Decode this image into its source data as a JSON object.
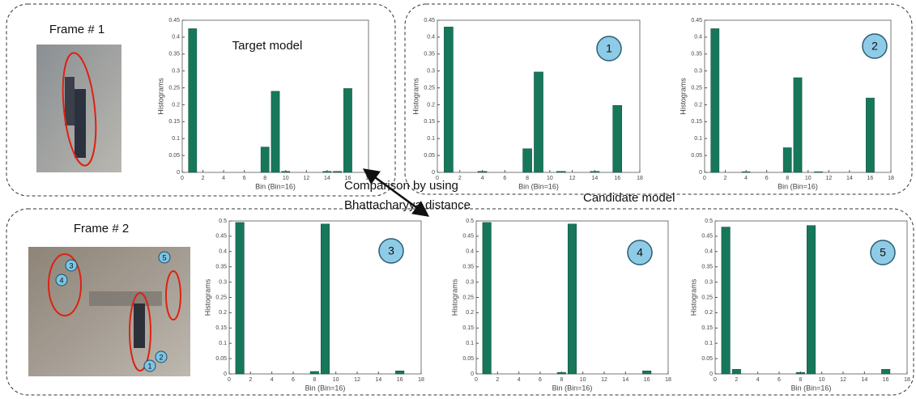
{
  "chart_data": [
    {
      "type": "bar",
      "annotation": "Target model",
      "x": [
        1,
        8,
        9,
        10,
        14,
        15,
        16
      ],
      "values": [
        0.425,
        0.075,
        0.24,
        0.003,
        0.003,
        0.003,
        0.248
      ],
      "color": "#17775b",
      "xlabel": "Bin (Bin=16)",
      "ylabel": "Histograms",
      "xlim": [
        0,
        18
      ],
      "xticks": [
        0,
        2,
        4,
        6,
        8,
        10,
        12,
        14,
        16,
        18
      ],
      "ylim": [
        0,
        0.45
      ],
      "yticks": [
        0,
        0.05,
        0.1,
        0.15,
        0.2,
        0.25,
        0.3,
        0.35,
        0.4,
        0.45
      ]
    },
    {
      "type": "bar",
      "badge": "1",
      "x": [
        1,
        4,
        8,
        9,
        11,
        14,
        16
      ],
      "values": [
        0.43,
        0.003,
        0.07,
        0.297,
        0.003,
        0.003,
        0.198
      ],
      "color": "#17775b",
      "xlabel": "Bin (Bin=16)",
      "ylabel": "Histograms",
      "xlim": [
        0,
        18
      ],
      "xticks": [
        0,
        2,
        4,
        6,
        8,
        10,
        12,
        14,
        16,
        18
      ],
      "ylim": [
        0,
        0.45
      ],
      "yticks": [
        0,
        0.05,
        0.1,
        0.15,
        0.2,
        0.25,
        0.3,
        0.35,
        0.4,
        0.45
      ]
    },
    {
      "type": "bar",
      "badge": "2",
      "x": [
        1,
        4,
        8,
        9,
        11,
        16
      ],
      "values": [
        0.425,
        0.002,
        0.073,
        0.28,
        0.002,
        0.22
      ],
      "color": "#17775b",
      "xlabel": "Bin (Bin=16)",
      "ylabel": "Histograms",
      "xlim": [
        0,
        18
      ],
      "xticks": [
        0,
        2,
        4,
        6,
        8,
        10,
        12,
        14,
        16,
        18
      ],
      "ylim": [
        0,
        0.45
      ],
      "yticks": [
        0,
        0.05,
        0.1,
        0.15,
        0.2,
        0.25,
        0.3,
        0.35,
        0.4,
        0.45
      ]
    },
    {
      "type": "bar",
      "badge": "3",
      "x": [
        1,
        8,
        9,
        16
      ],
      "values": [
        0.495,
        0.008,
        0.49,
        0.01
      ],
      "color": "#17775b",
      "xlabel": "Bin (Bin=16)",
      "ylabel": "Histograms",
      "xlim": [
        0,
        18
      ],
      "xticks": [
        0,
        2,
        4,
        6,
        8,
        10,
        12,
        14,
        16,
        18
      ],
      "ylim": [
        0,
        0.5
      ],
      "yticks": [
        0,
        0.05,
        0.1,
        0.15,
        0.2,
        0.25,
        0.3,
        0.35,
        0.4,
        0.45,
        0.5
      ]
    },
    {
      "type": "bar",
      "badge": "4",
      "x": [
        1,
        8,
        9,
        16
      ],
      "values": [
        0.495,
        0.005,
        0.49,
        0.01
      ],
      "color": "#17775b",
      "xlabel": "Bin (Bin=16)",
      "ylabel": "Histograms",
      "xlim": [
        0,
        18
      ],
      "xticks": [
        0,
        2,
        4,
        6,
        8,
        10,
        12,
        14,
        16,
        18
      ],
      "ylim": [
        0,
        0.5
      ],
      "yticks": [
        0,
        0.05,
        0.1,
        0.15,
        0.2,
        0.25,
        0.3,
        0.35,
        0.4,
        0.45,
        0.5
      ]
    },
    {
      "type": "bar",
      "badge": "5",
      "x": [
        1,
        2,
        8,
        9,
        16
      ],
      "values": [
        0.48,
        0.015,
        0.005,
        0.485,
        0.015
      ],
      "color": "#17775b",
      "xlabel": "Bin (Bin=16)",
      "ylabel": "Histograms",
      "xlim": [
        0,
        18
      ],
      "xticks": [
        0,
        2,
        4,
        6,
        8,
        10,
        12,
        14,
        16,
        18
      ],
      "ylim": [
        0,
        0.5
      ],
      "yticks": [
        0,
        0.05,
        0.1,
        0.15,
        0.2,
        0.25,
        0.3,
        0.35,
        0.4,
        0.45,
        0.5
      ]
    }
  ],
  "frames": [
    {
      "title": "Frame # 1"
    },
    {
      "title": "Frame # 2",
      "markers": [
        "1",
        "2",
        "3",
        "4",
        "5"
      ]
    }
  ],
  "comparison": [
    "Comparison by using",
    "Bhattacharyya distance"
  ],
  "candidate_label": "Candidate model"
}
